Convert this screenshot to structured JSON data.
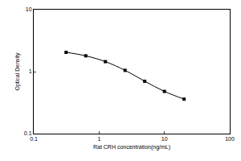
{
  "chart_data": {
    "type": "scatter",
    "x_label": "Rat CRH concentration(ng/mL)",
    "y_label": "Optical Density",
    "x": [
      0.3125,
      0.625,
      1.25,
      2.5,
      5,
      10,
      20
    ],
    "values": [
      2.05,
      1.8,
      1.45,
      1.05,
      0.7,
      0.48,
      0.36
    ],
    "color": "#000000",
    "marker": "square",
    "line_style": "solid",
    "log": true,
    "grid": false,
    "xlim": [
      0.1,
      100
    ],
    "xticks": [
      0.1,
      1,
      10,
      100
    ],
    "ylim": [
      0.1,
      10
    ],
    "yticks": [
      0.1,
      1,
      10
    ]
  }
}
